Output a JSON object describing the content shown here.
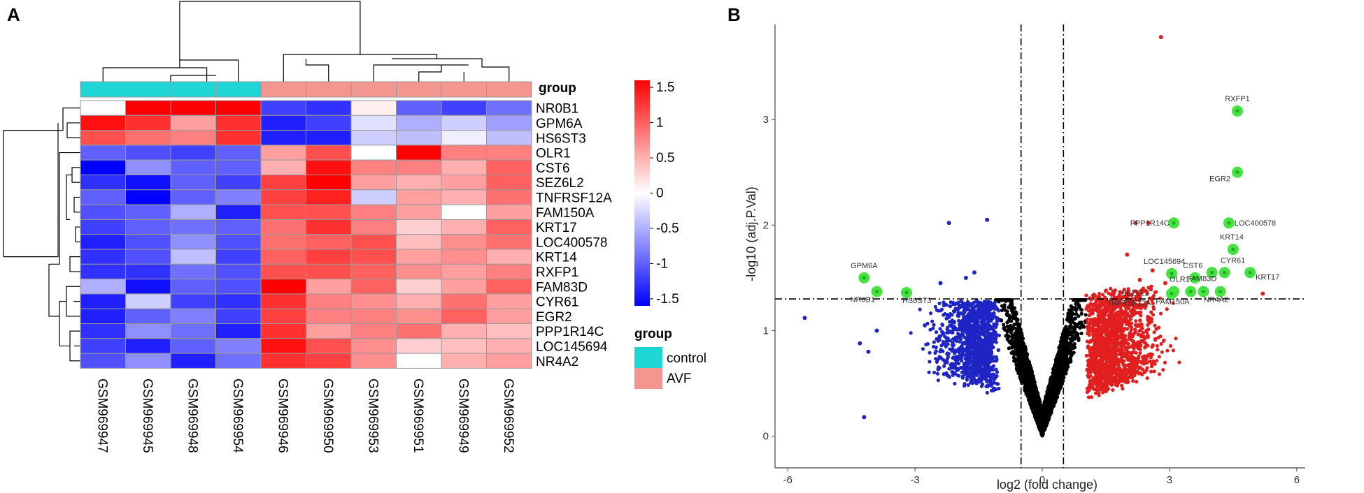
{
  "panels": {
    "a_letter": "A",
    "b_letter": "B"
  },
  "chart_data": [
    {
      "type": "heatmap",
      "title": "",
      "samples": [
        "GSM969947",
        "GSM969945",
        "GSM969948",
        "GSM969954",
        "GSM969946",
        "GSM969950",
        "GSM969953",
        "GSM969951",
        "GSM969949",
        "GSM969952"
      ],
      "sample_groups": [
        "control",
        "control",
        "control",
        "control",
        "AVF",
        "AVF",
        "AVF",
        "AVF",
        "AVF",
        "AVF"
      ],
      "genes": [
        "NR0B1",
        "GPM6A",
        "HS6ST3",
        "OLR1",
        "CST6",
        "SEZ6L2",
        "TNFRSF12A",
        "FAM150A",
        "KRT17",
        "LOC400578",
        "KRT14",
        "RXFP1",
        "FAM83D",
        "CYR61",
        "EGR2",
        "PPP1R14C",
        "LOC145694",
        "NR4A2"
      ],
      "values": [
        [
          0.0,
          1.6,
          1.6,
          1.6,
          -1.2,
          -1.3,
          0.1,
          -1.0,
          -1.2,
          -0.9
        ],
        [
          1.5,
          1.3,
          0.6,
          1.3,
          -1.4,
          -1.2,
          -0.2,
          -0.5,
          -0.3,
          -0.6
        ],
        [
          1.1,
          0.9,
          0.8,
          1.3,
          -1.4,
          -1.4,
          -0.3,
          -0.4,
          -0.1,
          -0.4
        ],
        [
          -1.0,
          -1.1,
          -1.2,
          -1.0,
          0.6,
          1.1,
          0.0,
          1.8,
          0.8,
          0.8
        ],
        [
          -1.6,
          -0.7,
          -1.0,
          -1.0,
          0.5,
          1.5,
          0.8,
          0.8,
          0.5,
          1.0
        ],
        [
          -1.3,
          -1.5,
          -1.0,
          -1.2,
          1.2,
          1.6,
          0.6,
          0.5,
          0.6,
          1.0
        ],
        [
          -1.0,
          -1.6,
          -1.0,
          -0.8,
          1.2,
          1.4,
          -0.3,
          0.6,
          0.5,
          0.9
        ],
        [
          -1.1,
          -1.0,
          -0.5,
          -1.4,
          1.1,
          1.1,
          0.8,
          0.6,
          0.0,
          0.6
        ],
        [
          -1.2,
          -1.0,
          -0.9,
          -1.0,
          0.9,
          1.3,
          0.8,
          0.3,
          0.5,
          1.0
        ],
        [
          -1.4,
          -1.1,
          -0.7,
          -1.1,
          0.9,
          1.0,
          1.1,
          0.4,
          0.7,
          0.9
        ],
        [
          -1.3,
          -1.1,
          -0.4,
          -1.2,
          1.0,
          1.2,
          1.1,
          0.6,
          0.7,
          0.5
        ],
        [
          -1.3,
          -1.3,
          -0.9,
          -1.1,
          1.1,
          1.1,
          1.0,
          0.7,
          0.6,
          0.8
        ],
        [
          -0.5,
          -1.5,
          -1.0,
          -1.1,
          1.6,
          0.6,
          1.0,
          0.3,
          0.6,
          1.0
        ],
        [
          -1.4,
          -0.3,
          -1.2,
          -1.3,
          1.3,
          0.8,
          0.7,
          0.5,
          0.9,
          0.6
        ],
        [
          -1.4,
          -1.0,
          -0.8,
          -1.2,
          1.2,
          0.8,
          0.8,
          0.7,
          1.0,
          0.6
        ],
        [
          -1.3,
          -0.7,
          -0.9,
          -1.4,
          1.3,
          0.6,
          0.8,
          0.9,
          0.5,
          0.4
        ],
        [
          -1.2,
          -1.4,
          -1.0,
          -0.8,
          1.5,
          1.1,
          0.7,
          0.3,
          0.4,
          0.5
        ],
        [
          -1.1,
          -0.7,
          -1.4,
          -0.9,
          1.3,
          1.2,
          0.7,
          0.0,
          0.5,
          0.6
        ]
      ],
      "color_scale": {
        "min": -1.6,
        "max": 1.6,
        "low_color": "#0000FF",
        "mid_color": "#FFFFFF",
        "high_color": "#FF0000"
      },
      "colorbar_ticks": [
        "1.5",
        "1",
        "0.5",
        "0",
        "-0.5",
        "-1",
        "-1.5"
      ],
      "group_annotation": {
        "label": "group",
        "control_color": "#1ED6D6",
        "avf_color": "#F3968F"
      },
      "legend": {
        "title": "group",
        "items": [
          {
            "label": "control",
            "color": "#1ED6D6"
          },
          {
            "label": "AVF",
            "color": "#F3968F"
          }
        ]
      }
    },
    {
      "type": "scatter",
      "title": "",
      "xlabel": "log2 (fold change)",
      "ylabel": "-log10 (adj.P.Val)",
      "xlim": [
        -6.3,
        6.2
      ],
      "ylim": [
        -0.3,
        3.9
      ],
      "xticks": [
        "-6",
        "-3",
        "0",
        "3",
        "6"
      ],
      "yticks": [
        "0",
        "1",
        "2",
        "3"
      ],
      "thresholds": {
        "logfc": [
          -0.5,
          0.5
        ],
        "neglog10p": 1.3
      },
      "colors": {
        "down": "#1F25C4",
        "up": "#E21F1F",
        "ns": "#000000",
        "highlight": "#44E33F"
      },
      "highlighted_genes": [
        {
          "label": "RXFP1",
          "x": 4.6,
          "y": 3.08
        },
        {
          "label": "EGR2",
          "x": 4.6,
          "y": 2.5
        },
        {
          "label": "PPP1R14C",
          "x": 3.1,
          "y": 2.02
        },
        {
          "label": "LOC400578",
          "x": 4.4,
          "y": 2.02
        },
        {
          "label": "KRT14",
          "x": 4.5,
          "y": 1.77
        },
        {
          "label": "LOC145694",
          "x": 3.05,
          "y": 1.54
        },
        {
          "label": "CST6",
          "x": 3.6,
          "y": 1.5
        },
        {
          "label": "CYR61",
          "x": 4.3,
          "y": 1.55
        },
        {
          "label": "KRT17",
          "x": 4.9,
          "y": 1.55
        },
        {
          "label": "OLR1",
          "x": 3.1,
          "y": 1.37
        },
        {
          "label": "SEZ6L2",
          "x": 3.05,
          "y": 1.35
        },
        {
          "label": "FAM83D",
          "x": 4.0,
          "y": 1.55
        },
        {
          "label": "FAM150A",
          "x": 3.5,
          "y": 1.37
        },
        {
          "label": "TNFRSF12A",
          "x": 3.8,
          "y": 1.37
        },
        {
          "label": "NR4A2",
          "x": 4.2,
          "y": 1.37
        },
        {
          "label": "GPM6A",
          "x": -4.2,
          "y": 1.5
        },
        {
          "label": "NR0B1",
          "x": -3.9,
          "y": 1.37
        },
        {
          "label": "HS6ST3",
          "x": -3.2,
          "y": 1.36
        }
      ],
      "other_points": {
        "up_outliers": [
          [
            2.8,
            3.78
          ],
          [
            2.2,
            2.02
          ],
          [
            2.5,
            2.02
          ],
          [
            2.0,
            1.72
          ],
          [
            2.6,
            1.57
          ],
          [
            2.3,
            1.48
          ],
          [
            2.9,
            1.45
          ],
          [
            5.2,
            1.35
          ]
        ],
        "down_outliers": [
          [
            -1.3,
            2.05
          ],
          [
            -2.2,
            2.02
          ],
          [
            -5.6,
            1.12
          ],
          [
            -4.1,
            0.8
          ],
          [
            -3.9,
            1.0
          ],
          [
            -4.3,
            0.88
          ],
          [
            -4.2,
            0.18
          ],
          [
            -2.4,
            1.45
          ],
          [
            -1.6,
            1.55
          ],
          [
            -1.8,
            1.5
          ]
        ]
      }
    }
  ]
}
